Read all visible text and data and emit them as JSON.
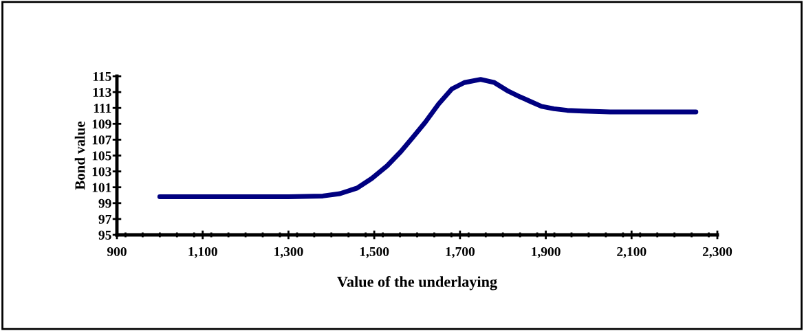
{
  "chart_data": {
    "type": "line",
    "xlabel": "Value of the underlaying",
    "ylabel": "Bond value",
    "x": [
      1000,
      1100,
      1200,
      1300,
      1380,
      1420,
      1460,
      1494,
      1530,
      1562,
      1590,
      1619,
      1650,
      1681,
      1710,
      1748,
      1780,
      1813,
      1840,
      1865,
      1890,
      1919,
      1950,
      1987,
      2050,
      2150,
      2250
    ],
    "series": [
      {
        "color": "#000080",
        "values": [
          99.8,
          99.8,
          99.8,
          99.8,
          99.9,
          100.2,
          100.9,
          102.1,
          103.7,
          105.5,
          107.3,
          109.2,
          111.5,
          113.4,
          114.2,
          114.6,
          114.2,
          113.1,
          112.4,
          111.8,
          111.2,
          110.9,
          110.7,
          110.6,
          110.5,
          110.5,
          110.5
        ]
      }
    ],
    "xlim": [
      900,
      2300
    ],
    "xticks": [
      {
        "value": 900,
        "label": "900"
      },
      {
        "value": 1100,
        "label": "1,100"
      },
      {
        "value": 1300,
        "label": "1,300"
      },
      {
        "value": 1500,
        "label": "1,500"
      },
      {
        "value": 1700,
        "label": "1,700"
      },
      {
        "value": 1900,
        "label": "1,900"
      },
      {
        "value": 2100,
        "label": "2,100"
      },
      {
        "value": 2300,
        "label": "2,300"
      }
    ],
    "ylim": [
      95,
      115
    ],
    "yticks": [
      95,
      97,
      99,
      101,
      103,
      105,
      107,
      109,
      111,
      113,
      115
    ],
    "grid": false,
    "legend": false,
    "marker": "none",
    "line_style": "solid"
  }
}
